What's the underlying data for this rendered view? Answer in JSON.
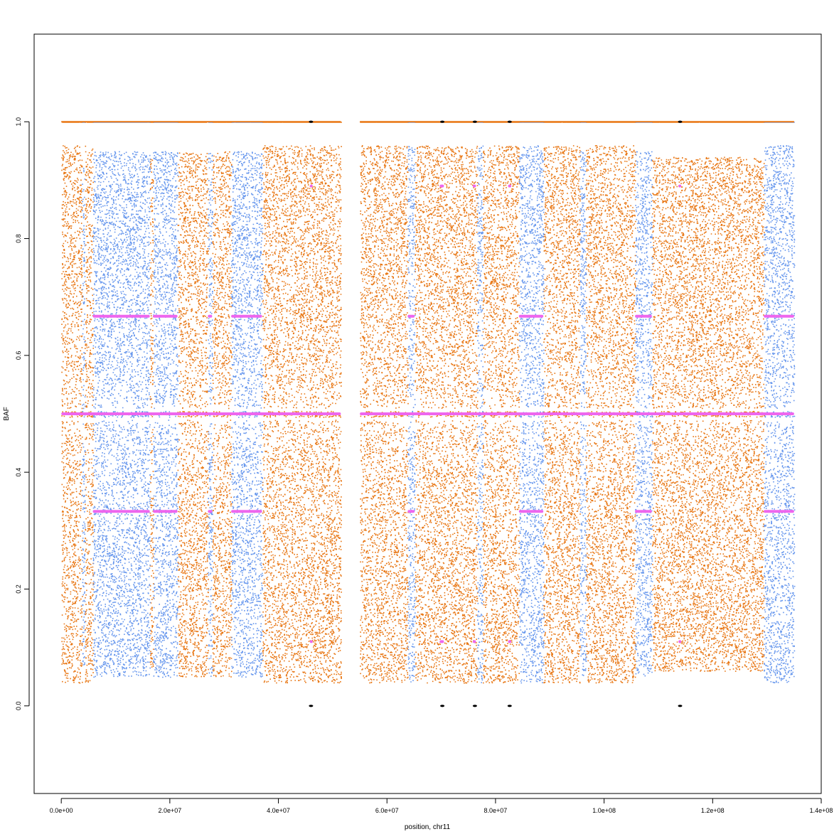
{
  "chart_data": {
    "type": "scatter",
    "title": "",
    "xlabel": "position, chr11",
    "ylabel": "BAF",
    "xlim": [
      -5000000,
      140000000
    ],
    "ylim": [
      -0.15,
      1.15
    ],
    "x_ticks": [
      0,
      20000000,
      40000000,
      60000000,
      80000000,
      100000000,
      120000000,
      140000000
    ],
    "x_tick_labels": [
      "0.0e+00",
      "2.0e+07",
      "4.0e+07",
      "6.0e+07",
      "8.0e+07",
      "1.0e+08",
      "1.2e+08",
      "1.4e+08"
    ],
    "y_ticks": [
      0.0,
      0.2,
      0.4,
      0.6,
      0.8,
      1.0
    ],
    "y_tick_labels": [
      "0.0",
      "0.2",
      "0.4",
      "0.6",
      "0.8",
      "1.0"
    ],
    "grid": false,
    "legend": "none",
    "colors": {
      "orange": "#E87511",
      "blue": "#6495ED",
      "magenta": "#EE66EE",
      "black": "#000000"
    },
    "segments": [
      {
        "start": 0,
        "end": 3800000,
        "color": "orange",
        "spread": 0.45
      },
      {
        "start": 3800000,
        "end": 4300000,
        "color": "blue",
        "spread": 0.42
      },
      {
        "start": 4300000,
        "end": 5800000,
        "color": "orange",
        "spread": 0.45
      },
      {
        "start": 5800000,
        "end": 16300000,
        "color": "blue",
        "spread": 0.44
      },
      {
        "start": 16300000,
        "end": 16900000,
        "color": "orange",
        "spread": 0.44
      },
      {
        "start": 16900000,
        "end": 21400000,
        "color": "blue",
        "spread": 0.44
      },
      {
        "start": 21400000,
        "end": 27000000,
        "color": "orange",
        "spread": 0.44
      },
      {
        "start": 27000000,
        "end": 27800000,
        "color": "blue",
        "spread": 0.44
      },
      {
        "start": 27800000,
        "end": 31300000,
        "color": "orange",
        "spread": 0.44
      },
      {
        "start": 31300000,
        "end": 37000000,
        "color": "blue",
        "spread": 0.44
      },
      {
        "start": 37000000,
        "end": 51500000,
        "color": "orange",
        "spread": 0.45
      },
      {
        "start": 55000000,
        "end": 63800000,
        "color": "orange",
        "spread": 0.45
      },
      {
        "start": 63800000,
        "end": 65100000,
        "color": "blue",
        "spread": 0.45
      },
      {
        "start": 65100000,
        "end": 76600000,
        "color": "orange",
        "spread": 0.45
      },
      {
        "start": 76600000,
        "end": 77600000,
        "color": "blue",
        "spread": 0.45
      },
      {
        "start": 77600000,
        "end": 84300000,
        "color": "orange",
        "spread": 0.45
      },
      {
        "start": 84300000,
        "end": 88800000,
        "color": "blue",
        "spread": 0.45
      },
      {
        "start": 88800000,
        "end": 95500000,
        "color": "orange",
        "spread": 0.45
      },
      {
        "start": 95500000,
        "end": 96600000,
        "color": "blue",
        "spread": 0.44
      },
      {
        "start": 96600000,
        "end": 105700000,
        "color": "orange",
        "spread": 0.45
      },
      {
        "start": 105700000,
        "end": 108800000,
        "color": "blue",
        "spread": 0.44
      },
      {
        "start": 108800000,
        "end": 129400000,
        "color": "orange",
        "spread": 0.43
      },
      {
        "start": 129400000,
        "end": 135000000,
        "color": "blue",
        "spread": 0.45
      }
    ],
    "homozygous_bands": [
      {
        "start": 0,
        "end": 51500000
      },
      {
        "start": 55000000,
        "end": 135000000
      }
    ],
    "magenta_levels": [
      {
        "y": 0.5,
        "ranges": [
          [
            0,
            51500000
          ],
          [
            55000000,
            135000000
          ]
        ]
      },
      {
        "y": 0.667,
        "ranges": [
          [
            5800000,
            16300000
          ],
          [
            16900000,
            21400000
          ],
          [
            27000000,
            27800000
          ],
          [
            31300000,
            37000000
          ],
          [
            63800000,
            65100000
          ],
          [
            84300000,
            88800000
          ],
          [
            105700000,
            108800000
          ],
          [
            129400000,
            135000000
          ]
        ]
      },
      {
        "y": 0.333,
        "ranges": [
          [
            5800000,
            16300000
          ],
          [
            16900000,
            21400000
          ],
          [
            27000000,
            27800000
          ],
          [
            31300000,
            37000000
          ],
          [
            63800000,
            65100000
          ],
          [
            84300000,
            88800000
          ],
          [
            105700000,
            108800000
          ],
          [
            129400000,
            135000000
          ]
        ]
      },
      {
        "y": 0.89,
        "ranges": [
          [
            45800000,
            46300000
          ],
          [
            69700000,
            70500000
          ],
          [
            75800000,
            76400000
          ],
          [
            82300000,
            82900000
          ],
          [
            113700000,
            114100000
          ]
        ]
      },
      {
        "y": 0.11,
        "ranges": [
          [
            45800000,
            46300000
          ],
          [
            69700000,
            70500000
          ],
          [
            75800000,
            76400000
          ],
          [
            82300000,
            82900000
          ],
          [
            113700000,
            114100000
          ]
        ]
      }
    ],
    "black_points": [
      {
        "x": 46000000,
        "y": 1.0
      },
      {
        "x": 70200000,
        "y": 1.0
      },
      {
        "x": 76200000,
        "y": 1.0
      },
      {
        "x": 82600000,
        "y": 1.0
      },
      {
        "x": 114000000,
        "y": 1.0
      },
      {
        "x": 46000000,
        "y": 0.0
      },
      {
        "x": 70200000,
        "y": 0.0
      },
      {
        "x": 76200000,
        "y": 0.0
      },
      {
        "x": 82600000,
        "y": 0.0
      },
      {
        "x": 114000000,
        "y": 0.0
      }
    ]
  }
}
